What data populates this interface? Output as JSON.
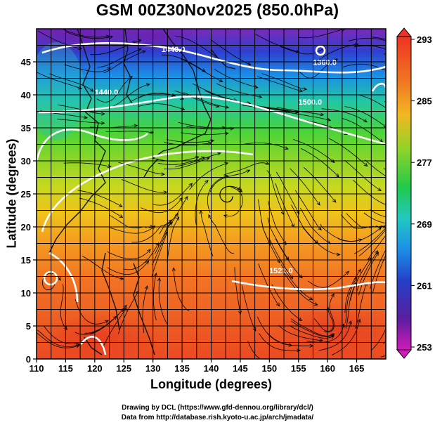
{
  "title": "GSM 00Z30Nov2025 (850.0hPa)",
  "x_axis": {
    "label": "Longitude (degrees)",
    "min": 110,
    "max": 170,
    "ticks": [
      "110",
      "115",
      "120",
      "125",
      "130",
      "135",
      "140",
      "145",
      "150",
      "155",
      "160",
      "165"
    ],
    "tick_values": [
      110,
      115,
      120,
      125,
      130,
      135,
      140,
      145,
      150,
      155,
      160,
      165
    ]
  },
  "y_axis": {
    "label": "Latitude  (degrees)",
    "min": 0,
    "max": 50,
    "ticks": [
      "0",
      "5",
      "10",
      "15",
      "20",
      "25",
      "30",
      "35",
      "40",
      "45"
    ],
    "tick_values": [
      0,
      5,
      10,
      15,
      20,
      25,
      30,
      35,
      40,
      45
    ]
  },
  "colorbar": {
    "ticks": [
      "253",
      "261",
      "269",
      "277",
      "285",
      "293"
    ],
    "tick_values": [
      253,
      261,
      269,
      277,
      285,
      293
    ],
    "min": 253,
    "max": 293
  },
  "contour_labels": [
    {
      "text": "1360.0",
      "lon": 159.5,
      "lat": 44.5
    },
    {
      "text": "1440.0",
      "lon": 133.5,
      "lat": 46.5
    },
    {
      "text": "1440.0",
      "lon": 122.0,
      "lat": 40.0
    },
    {
      "text": "1500.0",
      "lon": 157.0,
      "lat": 38.5
    },
    {
      "text": "1521.0",
      "lon": 152.0,
      "lat": 13.0
    }
  ],
  "grid": true,
  "credits": {
    "line1": "Drawing by DCL (https://www.gfd-dennou.org/library/dcl/)",
    "line2": "Data from http://database.rish.kyoto-u.ac.jp/arch/jmadata/"
  },
  "colors": {
    "cold": "#6a1fb0",
    "warm": "#e8431f",
    "contour": "#ffffff",
    "coast": "#111111"
  }
}
